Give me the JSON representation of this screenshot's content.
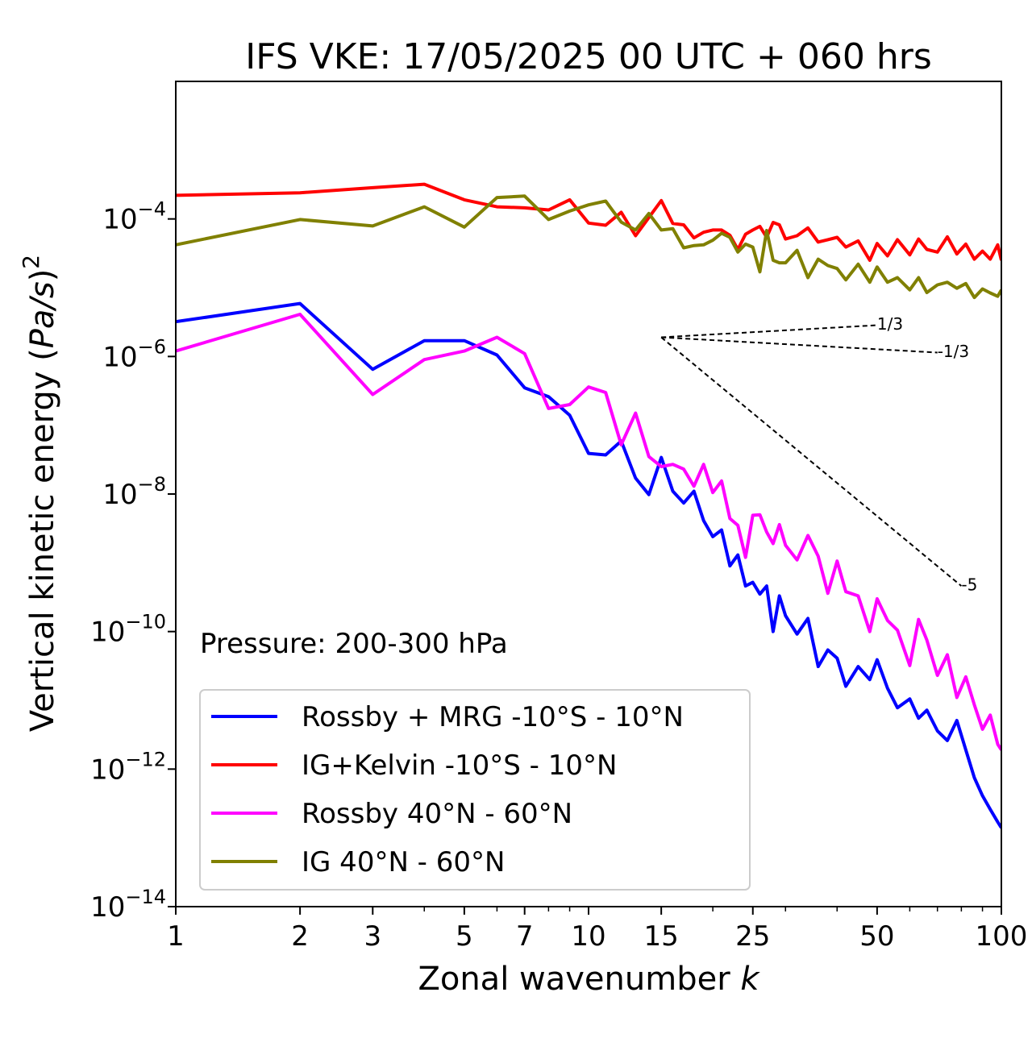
{
  "chart_data": {
    "type": "line",
    "title": "IFS VKE: 17/05/2025 00 UTC + 060 hrs",
    "xlabel": "Zonal wavenumber",
    "xlabel_var": "k",
    "ylabel_main": "Vertical kinetic energy (",
    "ylabel_var": "Pa/s",
    "ylabel_end": ")",
    "ylabel_sup": "2",
    "xscale": "log",
    "yscale": "log",
    "xlim": [
      1,
      100
    ],
    "ylim": [
      1e-14,
      0.01
    ],
    "xticks": [
      1,
      2,
      3,
      5,
      7,
      10,
      15,
      25,
      50,
      100
    ],
    "xtick_labels": [
      "1",
      "2",
      "3",
      "5",
      "7",
      "10",
      "15",
      "25",
      "50",
      "100"
    ],
    "yticks": [
      1e-14,
      1e-12,
      1e-10,
      1e-08,
      1e-06,
      0.0001
    ],
    "ytick_labels": [
      {
        "base": "10",
        "exp": "−14"
      },
      {
        "base": "10",
        "exp": "−12"
      },
      {
        "base": "10",
        "exp": "−10"
      },
      {
        "base": "10",
        "exp": "−8"
      },
      {
        "base": "10",
        "exp": "−6"
      },
      {
        "base": "10",
        "exp": "−4"
      }
    ],
    "annotation": "Pressure: 200-300 hPa",
    "legend_position": "lower-left",
    "reference_slopes": [
      {
        "label": "1/3",
        "from": [
          15,
          1.9e-06
        ],
        "to": [
          50,
          2.85e-06
        ]
      },
      {
        "label": "-1/3",
        "from": [
          15,
          1.9e-06
        ],
        "to": [
          70,
          1.14e-06
        ]
      },
      {
        "label": "-5",
        "from": [
          15,
          1.9e-06
        ],
        "to": [
          80,
          4.6e-10
        ]
      }
    ],
    "series": [
      {
        "name": "Rossby + MRG -10°S - 10°N",
        "color": "#0000ff",
        "x": [
          1,
          2,
          3,
          4,
          5,
          6,
          7,
          8,
          9,
          10,
          11,
          12,
          13,
          14,
          15,
          16,
          17,
          18,
          19,
          20,
          21,
          22,
          23,
          24,
          25,
          26,
          27,
          28,
          29,
          30,
          32,
          34,
          36,
          38,
          40,
          42,
          45,
          48,
          50,
          53,
          56,
          60,
          63,
          66,
          70,
          74,
          78,
          82,
          86,
          90,
          94,
          98,
          100
        ],
        "y": [
          3.2e-06,
          5.9e-06,
          6.5e-07,
          1.7e-06,
          1.7e-06,
          1.05e-06,
          3.5e-07,
          2.6e-07,
          1.4e-07,
          3.9e-08,
          3.7e-08,
          5.9e-08,
          1.7e-08,
          9.8e-09,
          3.4e-08,
          1.1e-08,
          7.4e-09,
          1.1e-08,
          4.1e-09,
          2.4e-09,
          3e-09,
          9e-10,
          1.3e-09,
          4.6e-10,
          5.2e-10,
          3.5e-10,
          4.6e-10,
          1e-10,
          3.3e-10,
          1.7e-10,
          9.2e-11,
          1.55e-10,
          3.1e-11,
          5.4e-11,
          4.1e-11,
          1.6e-11,
          3.1e-11,
          2e-11,
          3.9e-11,
          1.5e-11,
          7.8e-12,
          1.05e-11,
          5.5e-12,
          7.2e-12,
          3.6e-12,
          2.6e-12,
          5.1e-12,
          1.9e-12,
          7.5e-13,
          4.1e-13,
          2.6e-13,
          1.7e-13,
          1.4e-13
        ]
      },
      {
        "name": "IG+Kelvin -10°S - 10°N",
        "color": "#ff0000",
        "x": [
          1,
          2,
          3,
          4,
          5,
          6,
          7,
          8,
          9,
          10,
          11,
          12,
          13,
          14,
          15,
          16,
          17,
          18,
          19,
          20,
          21,
          22,
          23,
          24,
          25,
          26,
          27,
          28,
          29,
          30,
          32,
          34,
          36,
          38,
          40,
          42,
          45,
          48,
          50,
          53,
          56,
          60,
          63,
          66,
          70,
          74,
          78,
          82,
          86,
          90,
          94,
          98,
          100
        ],
        "y": [
          0.00022,
          0.00024,
          0.000285,
          0.00032,
          0.00019,
          0.00015,
          0.000145,
          0.000135,
          0.00019,
          8.7e-05,
          8.1e-05,
          0.000125,
          5.7e-05,
          0.000105,
          0.000185,
          8.6e-05,
          8.2e-05,
          5.3e-05,
          6.4e-05,
          6.9e-05,
          6.9e-05,
          5.8e-05,
          3.6e-05,
          6e-05,
          6.9e-05,
          7.8e-05,
          5.4e-05,
          8.9e-05,
          8.2e-05,
          5.1e-05,
          5.7e-05,
          7.4e-05,
          4.6e-05,
          5e-05,
          5.4e-05,
          3.9e-05,
          4.8e-05,
          2.5e-05,
          4.4e-05,
          2.9e-05,
          5e-05,
          3e-05,
          5.1e-05,
          3.6e-05,
          3.3e-05,
          5.5e-05,
          3.1e-05,
          4.3e-05,
          2.6e-05,
          3.4e-05,
          2.6e-05,
          4.2e-05,
          2.5e-05
        ]
      },
      {
        "name": "Rossby 40°N - 60°N",
        "color": "#ff00ff",
        "x": [
          1,
          2,
          3,
          4,
          5,
          6,
          7,
          8,
          9,
          10,
          11,
          12,
          13,
          14,
          15,
          16,
          17,
          18,
          19,
          20,
          21,
          22,
          23,
          24,
          25,
          26,
          27,
          28,
          29,
          30,
          32,
          34,
          36,
          38,
          40,
          42,
          45,
          48,
          50,
          53,
          56,
          60,
          63,
          66,
          70,
          74,
          78,
          82,
          86,
          90,
          94,
          98,
          100
        ],
        "y": [
          1.2e-06,
          4.1e-06,
          2.8e-07,
          9e-07,
          1.2e-06,
          1.9e-06,
          1.1e-06,
          1.75e-07,
          2e-07,
          3.6e-07,
          3e-07,
          5.2e-08,
          1.5e-07,
          3.5e-08,
          2.5e-08,
          2.7e-08,
          2.3e-08,
          1.3e-08,
          2.7e-08,
          1.05e-08,
          1.55e-08,
          4.4e-09,
          3.5e-09,
          1.2e-09,
          4.9e-09,
          5e-09,
          2.8e-09,
          1.9e-09,
          3.6e-09,
          1.8e-09,
          1.1e-09,
          2.5e-09,
          1.25e-09,
          3.6e-10,
          1.06e-09,
          3.8e-10,
          3.3e-10,
          1e-10,
          3e-10,
          1.45e-10,
          1.05e-10,
          3.2e-11,
          1.5e-10,
          7.5e-11,
          2.3e-11,
          4.6e-11,
          1.1e-11,
          2.2e-11,
          8.6e-12,
          3.8e-12,
          6.1e-12,
          2.3e-12,
          1.9e-12
        ]
      },
      {
        "name": "IG 40°N - 60°N",
        "color": "#808000",
        "x": [
          1,
          2,
          3,
          4,
          5,
          6,
          7,
          8,
          9,
          10,
          11,
          12,
          13,
          14,
          15,
          16,
          17,
          18,
          19,
          20,
          21,
          22,
          23,
          24,
          25,
          26,
          27,
          28,
          29,
          30,
          32,
          34,
          36,
          38,
          40,
          42,
          45,
          48,
          50,
          53,
          56,
          60,
          63,
          66,
          70,
          74,
          78,
          82,
          86,
          90,
          94,
          98,
          100
        ],
        "y": [
          4.2e-05,
          9.8e-05,
          7.9e-05,
          0.00015,
          7.6e-05,
          0.000205,
          0.000215,
          9.8e-05,
          0.00013,
          0.00016,
          0.000182,
          9e-05,
          6.9e-05,
          0.00012,
          6.9e-05,
          7.2e-05,
          3.8e-05,
          4.1e-05,
          4.2e-05,
          4.9e-05,
          6.2e-05,
          5.4e-05,
          3.3e-05,
          4.3e-05,
          3.9e-05,
          1.7e-05,
          6.8e-05,
          2.5e-05,
          2.3e-05,
          2.3e-05,
          3.5e-05,
          1.4e-05,
          2.6e-05,
          2.1e-05,
          1.9e-05,
          1.3e-05,
          2.2e-05,
          1.2e-05,
          2e-05,
          1.2e-05,
          1.4e-05,
          9.3e-06,
          1.4e-05,
          8.5e-06,
          1.1e-05,
          1.2e-05,
          9.8e-06,
          1.15e-05,
          7.2e-06,
          9.6e-06,
          8.4e-06,
          7.5e-06,
          9.3e-06
        ]
      }
    ]
  }
}
